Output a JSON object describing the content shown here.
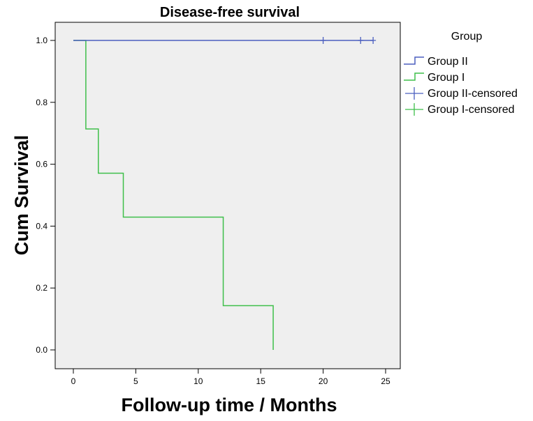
{
  "chart_data": {
    "type": "line",
    "subtype": "kaplan-meier-step",
    "title": "Disease-free survival",
    "xlabel": "Follow-up time / Months",
    "ylabel": "Cum Survival",
    "xlim": [
      0,
      25
    ],
    "ylim": [
      0,
      1
    ],
    "xticks": [
      0,
      5,
      10,
      15,
      20,
      25
    ],
    "yticks": [
      0.0,
      0.2,
      0.4,
      0.6,
      0.8,
      1.0
    ],
    "xtick_labels": [
      "0",
      "5",
      "10",
      "15",
      "20",
      "25"
    ],
    "ytick_labels": [
      "0.0",
      "0.2",
      "0.4",
      "0.6",
      "0.8",
      "1.0"
    ],
    "grid": false,
    "legend": {
      "title": "Group",
      "position": "right",
      "entries": [
        "Group II",
        "Group I",
        "Group II-censored",
        "Group I-censored"
      ]
    },
    "series": [
      {
        "name": "Group II",
        "color": "#4b5fbf",
        "steps": [
          [
            0,
            1.0
          ],
          [
            24,
            1.0
          ]
        ],
        "censored": [
          [
            20,
            1.0
          ],
          [
            23,
            1.0
          ],
          [
            24,
            1.0
          ]
        ]
      },
      {
        "name": "Group I",
        "color": "#3fbf4a",
        "steps": [
          [
            0,
            1.0
          ],
          [
            1,
            0.714
          ],
          [
            2,
            0.571
          ],
          [
            4,
            0.429
          ],
          [
            12,
            0.143
          ],
          [
            16,
            0.0
          ]
        ],
        "censored": []
      }
    ],
    "plot_background": "#efefef"
  }
}
